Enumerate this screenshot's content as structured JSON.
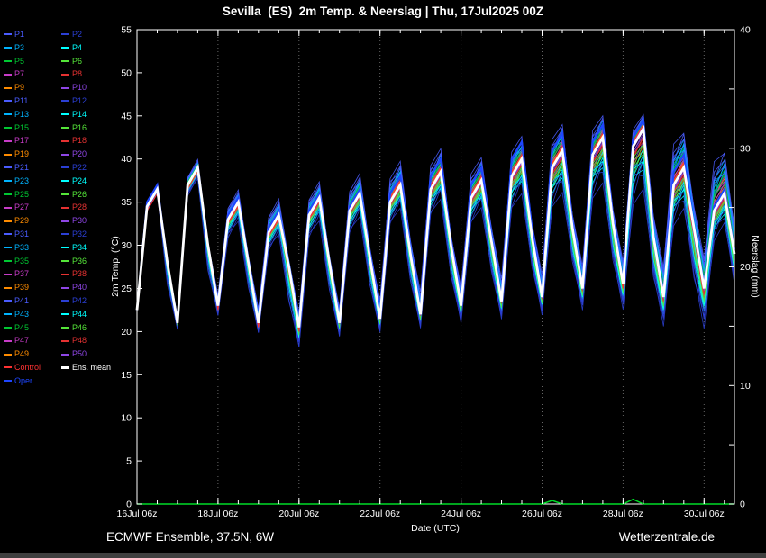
{
  "title": "Sevilla  (ES)  2m Temp. & Neerslag | Thu, 17Jul2025 00Z",
  "footer": {
    "left": "ECMWF Ensemble, 37.5N, 6W",
    "right": "Wetterzentrale.de"
  },
  "axes": {
    "x_label": "Date (UTC)",
    "y_left_label": "2m Temp. (°C)",
    "y_right_label": "Neerslag (mm)"
  },
  "colors": {
    "background": "#000000",
    "text": "#ffffff",
    "grid": "#666666",
    "control": "#ff3232",
    "ens_mean": "#ffffff",
    "oper": "#1e46ff",
    "precip": "#00dc28"
  },
  "legend": {
    "members": [
      {
        "name": "P1",
        "color": "#4a5cff",
        "spread_factor": 0.95
      },
      {
        "name": "P2",
        "color": "#2b3fd4",
        "spread_factor": -0.85
      },
      {
        "name": "P3",
        "color": "#00b4ff",
        "spread_factor": 0.7
      },
      {
        "name": "P4",
        "color": "#00ffff",
        "spread_factor": -0.6
      },
      {
        "name": "P5",
        "color": "#00c832",
        "spread_factor": 0.5
      },
      {
        "name": "P6",
        "color": "#55e639",
        "spread_factor": -0.45
      },
      {
        "name": "P7",
        "color": "#c83cc8",
        "spread_factor": 0.4
      },
      {
        "name": "P8",
        "color": "#e63232",
        "spread_factor": -0.35
      },
      {
        "name": "P9",
        "color": "#ff8c00",
        "spread_factor": 0.3
      },
      {
        "name": "P10",
        "color": "#8f46e6",
        "spread_factor": -0.25
      },
      {
        "name": "P11",
        "color": "#4a5cff",
        "spread_factor": 0.88
      },
      {
        "name": "P12",
        "color": "#2b3fd4",
        "spread_factor": -0.78
      },
      {
        "name": "P13",
        "color": "#00b4ff",
        "spread_factor": 0.65
      },
      {
        "name": "P14",
        "color": "#00ffff",
        "spread_factor": -0.55
      },
      {
        "name": "P15",
        "color": "#00c832",
        "spread_factor": 0.48
      },
      {
        "name": "P16",
        "color": "#55e639",
        "spread_factor": -0.4
      },
      {
        "name": "P17",
        "color": "#c83cc8",
        "spread_factor": 0.33
      },
      {
        "name": "P18",
        "color": "#e63232",
        "spread_factor": -0.28
      },
      {
        "name": "P19",
        "color": "#ff8c00",
        "spread_factor": 0.22
      },
      {
        "name": "P20",
        "color": "#8f46e6",
        "spread_factor": -0.18
      },
      {
        "name": "P21",
        "color": "#4a5cff",
        "spread_factor": 0.8
      },
      {
        "name": "P22",
        "color": "#2b3fd4",
        "spread_factor": -0.9
      },
      {
        "name": "P23",
        "color": "#00b4ff",
        "spread_factor": 0.6
      },
      {
        "name": "P24",
        "color": "#00ffff",
        "spread_factor": -0.5
      },
      {
        "name": "P25",
        "color": "#00c832",
        "spread_factor": 0.42
      },
      {
        "name": "P26",
        "color": "#55e639",
        "spread_factor": -0.36
      },
      {
        "name": "P27",
        "color": "#c83cc8",
        "spread_factor": 0.3
      },
      {
        "name": "P28",
        "color": "#e63232",
        "spread_factor": -0.22
      },
      {
        "name": "P29",
        "color": "#ff8c00",
        "spread_factor": 0.15
      },
      {
        "name": "P30",
        "color": "#8f46e6",
        "spread_factor": -0.1
      },
      {
        "name": "P31",
        "color": "#4a5cff",
        "spread_factor": 0.75
      },
      {
        "name": "P32",
        "color": "#2b3fd4",
        "spread_factor": -0.65
      },
      {
        "name": "P33",
        "color": "#00b4ff",
        "spread_factor": 0.55
      },
      {
        "name": "P34",
        "color": "#00ffff",
        "spread_factor": -0.48
      },
      {
        "name": "P35",
        "color": "#00c832",
        "spread_factor": 0.38
      },
      {
        "name": "P36",
        "color": "#55e639",
        "spread_factor": -0.32
      },
      {
        "name": "P37",
        "color": "#c83cc8",
        "spread_factor": 0.25
      },
      {
        "name": "P38",
        "color": "#e63232",
        "spread_factor": -0.2
      },
      {
        "name": "P39",
        "color": "#ff8c00",
        "spread_factor": 0.12
      },
      {
        "name": "P40",
        "color": "#8f46e6",
        "spread_factor": -0.08
      },
      {
        "name": "P41",
        "color": "#4a5cff",
        "spread_factor": 0.7
      },
      {
        "name": "P42",
        "color": "#2b3fd4",
        "spread_factor": -0.6
      },
      {
        "name": "P43",
        "color": "#00b4ff",
        "spread_factor": 0.52
      },
      {
        "name": "P44",
        "color": "#00ffff",
        "spread_factor": -0.44
      },
      {
        "name": "P45",
        "color": "#00c832",
        "spread_factor": 0.36
      },
      {
        "name": "P46",
        "color": "#55e639",
        "spread_factor": -0.3
      },
      {
        "name": "P47",
        "color": "#c83cc8",
        "spread_factor": 0.2
      },
      {
        "name": "P48",
        "color": "#e63232",
        "spread_factor": -0.15
      },
      {
        "name": "P49",
        "color": "#ff8c00",
        "spread_factor": 0.1
      },
      {
        "name": "P50",
        "color": "#8f46e6",
        "spread_factor": -0.05
      }
    ],
    "specials": [
      {
        "name": "Control",
        "color": "#ff3232"
      },
      {
        "name": "Ens. mean",
        "color": "#ffffff"
      },
      {
        "name": "Oper",
        "color": "#1e46ff"
      }
    ]
  },
  "chart_data": {
    "type": "line",
    "title": "Sevilla  (ES)  2m Temp. & Neerslag | Thu, 17Jul2025 00Z",
    "xlabel": "Date (UTC)",
    "ylabel_left": "2m Temp. (°C)",
    "ylabel_right": "Neerslag (mm)",
    "ylim_left": [
      0,
      55
    ],
    "ylim_right": [
      0,
      40
    ],
    "y_left_ticks": [
      0,
      5,
      10,
      15,
      20,
      25,
      30,
      35,
      40,
      45,
      50,
      55
    ],
    "y_right_ticks": [
      0,
      5,
      10,
      15,
      20,
      25,
      30,
      35,
      40
    ],
    "y_right_label_ticks": [
      0,
      10,
      20,
      30,
      40
    ],
    "x_hours": [
      6,
      12,
      18,
      24,
      30,
      36,
      42,
      48,
      54,
      60,
      66,
      72,
      78,
      84,
      90,
      96,
      102,
      108,
      114,
      120,
      126,
      132,
      138,
      144,
      150,
      156,
      162,
      168,
      174,
      180,
      186,
      192,
      198,
      204,
      210,
      216,
      222,
      228,
      234,
      240,
      246,
      252,
      258,
      264,
      270,
      276,
      282,
      288,
      294,
      300,
      306,
      312,
      318,
      324,
      330,
      336,
      342,
      348,
      354,
      360
    ],
    "x_major_ticks": [
      {
        "t": 6,
        "label": "16Jul 06z"
      },
      {
        "t": 54,
        "label": "18Jul 06z"
      },
      {
        "t": 102,
        "label": "20Jul 06z"
      },
      {
        "t": 150,
        "label": "22Jul 06z"
      },
      {
        "t": 198,
        "label": "24Jul 06z"
      },
      {
        "t": 246,
        "label": "26Jul 06z"
      },
      {
        "t": 294,
        "label": "28Jul 06z"
      },
      {
        "t": 342,
        "label": "30Jul 06z"
      }
    ],
    "series": {
      "ens_mean": [
        22.5,
        34.5,
        36.5,
        28,
        21,
        37,
        39,
        30,
        23,
        33,
        35,
        28,
        21,
        31.5,
        33.5,
        27.5,
        20.5,
        33.5,
        35.5,
        28,
        21,
        34,
        36,
        28.5,
        21.5,
        35,
        37,
        29,
        22,
        36.5,
        38.5,
        30,
        23,
        35.5,
        37.5,
        30.5,
        23.5,
        38,
        40,
        31,
        24,
        39,
        41,
        32,
        25,
        40.5,
        42.5,
        32.5,
        25.5,
        41.5,
        43.5,
        31,
        24,
        37,
        39,
        32,
        25,
        34,
        36,
        29
      ],
      "control": [
        22.5,
        34,
        36,
        27.5,
        21,
        36.5,
        38.5,
        29.5,
        22.5,
        32.5,
        34.5,
        27.5,
        20.5,
        31,
        33,
        27,
        20,
        33,
        35,
        27.5,
        21,
        34.5,
        36.5,
        28,
        21.5,
        35.5,
        37.5,
        29.5,
        22.5,
        37,
        39,
        30.5,
        23,
        36,
        38,
        30,
        24,
        38.5,
        40.5,
        31.5,
        24.5,
        39.5,
        41.5,
        32,
        25,
        41,
        43,
        32,
        25,
        42,
        44,
        31.5,
        24,
        37.5,
        39.5,
        31.5,
        25,
        34.5,
        36.5,
        29.5
      ],
      "oper": [
        22.5,
        35,
        37,
        28,
        21,
        37,
        39,
        30,
        23,
        33.5,
        35.5,
        28,
        21,
        32,
        34,
        27.5,
        20.5,
        34,
        36,
        28,
        21,
        34.5,
        36.5,
        29,
        22,
        36,
        38,
        29.5,
        22.5,
        38,
        40,
        30.5,
        23.5,
        37,
        39,
        31,
        24,
        40,
        42,
        32,
        24.5,
        41,
        43,
        32.5,
        25.5,
        42,
        44,
        33,
        26,
        42.5,
        44.5,
        31.5,
        24.5,
        38.5,
        40.5,
        32.5,
        25.5,
        34.5,
        36.5,
        29.5
      ],
      "precip_mm": [
        0,
        0,
        0,
        0,
        0,
        0,
        0,
        0,
        0,
        0,
        0,
        0,
        0,
        0,
        0,
        0,
        0,
        0,
        0,
        0,
        0,
        0,
        0,
        0,
        0,
        0,
        0,
        0,
        0,
        0,
        0,
        0,
        0,
        0,
        0,
        0,
        0,
        0,
        0,
        0,
        0,
        0.3,
        0,
        0,
        0,
        0,
        0,
        0,
        0,
        0.4,
        0,
        0,
        0,
        0,
        0,
        0,
        0,
        0,
        0,
        0
      ]
    },
    "ensemble_envelope": {
      "max": [
        22.5,
        35,
        37,
        28,
        22,
        38,
        40,
        30.5,
        24.5,
        34.5,
        36.5,
        29,
        23,
        33.5,
        35.5,
        28.5,
        22.5,
        35.5,
        37.5,
        29,
        23,
        36.5,
        38.5,
        30,
        24,
        38,
        40,
        31,
        25,
        39.5,
        41.5,
        31.5,
        25.5,
        38.5,
        40.5,
        32.5,
        26.5,
        41,
        43,
        33,
        27,
        42.5,
        44.5,
        34,
        28,
        43.5,
        45.5,
        34.5,
        28.5,
        43.5,
        45.5,
        34,
        28,
        42,
        44,
        35,
        29,
        40,
        42,
        33
      ],
      "min": [
        22.5,
        34,
        36,
        25,
        20,
        35.5,
        37.5,
        26.5,
        21.5,
        30.5,
        32.5,
        24.5,
        19.5,
        29,
        31,
        22.5,
        17.5,
        30.5,
        32.5,
        24,
        19,
        31,
        33,
        24.5,
        19.5,
        32,
        34,
        25,
        20,
        33,
        35,
        25.5,
        20.5,
        32,
        34,
        26,
        21,
        33.5,
        35.5,
        26.5,
        21.5,
        33.5,
        35.5,
        27,
        22,
        34.5,
        36.5,
        27,
        22,
        33.5,
        35.5,
        25,
        20,
        31.5,
        33.5,
        24.5,
        19.5,
        30,
        32,
        24.5
      ]
    }
  }
}
